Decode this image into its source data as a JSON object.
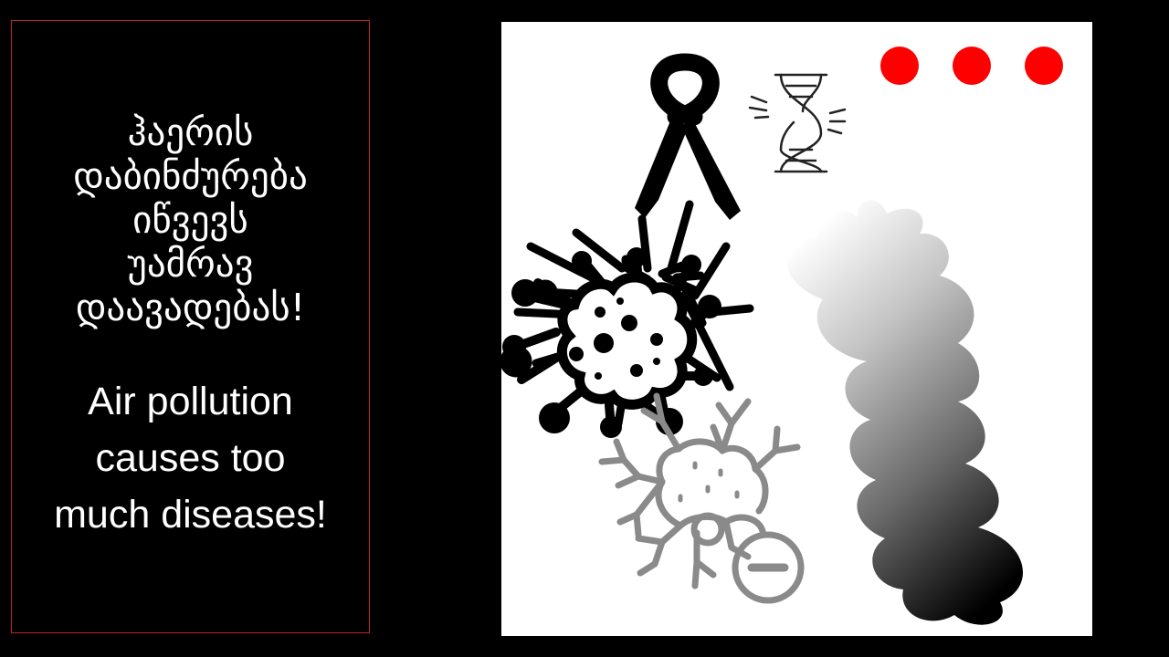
{
  "slide": {
    "georgian_lines": [
      "ჰაერის",
      "დაბინძურება",
      "იწვევს",
      "უამრავ",
      "დაავადებას!"
    ],
    "english_lines": [
      "Air pollution",
      "causes too",
      "much diseases!"
    ]
  },
  "illustration": {
    "icons": [
      "cancer-ribbon-icon",
      "dna-icon",
      "virus-icon",
      "neuron-icon",
      "minus-circle-icon",
      "smoke-cloud",
      "red-dots"
    ],
    "colors": {
      "accent": "#ff0000",
      "ink": "#000000",
      "neuron": "#8a8a8a",
      "border": "#c0232b"
    }
  }
}
